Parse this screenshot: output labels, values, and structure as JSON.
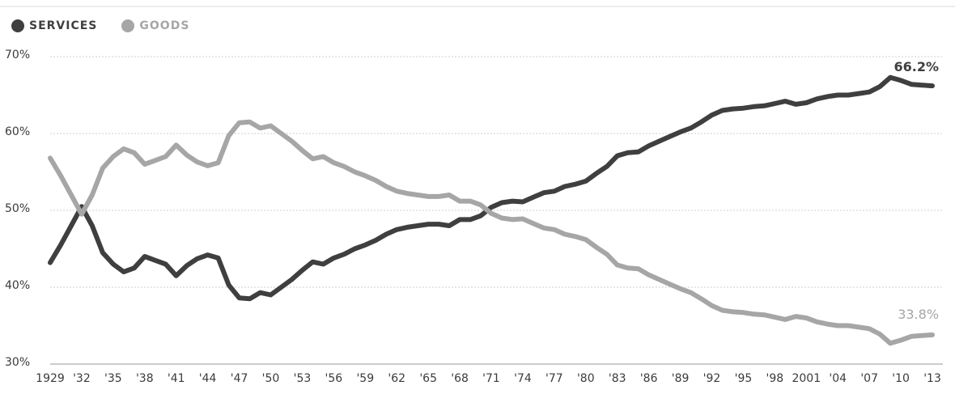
{
  "chart_data": {
    "type": "line",
    "title": "",
    "xlabel": "",
    "ylabel": "",
    "ylim": [
      30,
      70
    ],
    "xlim": [
      1929,
      2014
    ],
    "grid": true,
    "legend_placement": "top-left",
    "y_ticks": [
      {
        "value": 70,
        "label": "70%"
      },
      {
        "value": 60,
        "label": "60%"
      },
      {
        "value": 50,
        "label": "50%"
      },
      {
        "value": 40,
        "label": "40%"
      },
      {
        "value": 30,
        "label": "30%"
      }
    ],
    "x_ticks": [
      {
        "value": 1929,
        "label": "1929"
      },
      {
        "value": 1932,
        "label": "'32"
      },
      {
        "value": 1935,
        "label": "'35"
      },
      {
        "value": 1938,
        "label": "'38"
      },
      {
        "value": 1941,
        "label": "'41"
      },
      {
        "value": 1944,
        "label": "'44"
      },
      {
        "value": 1947,
        "label": "'47"
      },
      {
        "value": 1950,
        "label": "'50"
      },
      {
        "value": 1953,
        "label": "'53"
      },
      {
        "value": 1956,
        "label": "'56"
      },
      {
        "value": 1959,
        "label": "'59"
      },
      {
        "value": 1962,
        "label": "'62"
      },
      {
        "value": 1965,
        "label": "'65"
      },
      {
        "value": 1968,
        "label": "'68"
      },
      {
        "value": 1971,
        "label": "'71"
      },
      {
        "value": 1974,
        "label": "'74"
      },
      {
        "value": 1977,
        "label": "'77"
      },
      {
        "value": 1980,
        "label": "'80"
      },
      {
        "value": 1983,
        "label": "'83"
      },
      {
        "value": 1986,
        "label": "'86"
      },
      {
        "value": 1989,
        "label": "'89"
      },
      {
        "value": 1992,
        "label": "'92"
      },
      {
        "value": 1995,
        "label": "'95"
      },
      {
        "value": 1998,
        "label": "'98"
      },
      {
        "value": 2001,
        "label": "2001"
      },
      {
        "value": 2004,
        "label": "'04"
      },
      {
        "value": 2007,
        "label": "'07"
      },
      {
        "value": 2010,
        "label": "'10"
      },
      {
        "value": 2013,
        "label": "'13"
      }
    ],
    "series": [
      {
        "name": "SERVICES",
        "color": "#3f3f3f",
        "x": [
          1929,
          1930,
          1931,
          1932,
          1933,
          1934,
          1935,
          1936,
          1937,
          1938,
          1939,
          1940,
          1941,
          1942,
          1943,
          1944,
          1945,
          1946,
          1947,
          1948,
          1949,
          1950,
          1951,
          1952,
          1953,
          1954,
          1955,
          1956,
          1957,
          1958,
          1959,
          1960,
          1961,
          1962,
          1963,
          1964,
          1965,
          1966,
          1967,
          1968,
          1969,
          1970,
          1971,
          1972,
          1973,
          1974,
          1975,
          1976,
          1977,
          1978,
          1979,
          1980,
          1981,
          1982,
          1983,
          1984,
          1985,
          1986,
          1987,
          1988,
          1989,
          1990,
          1991,
          1992,
          1993,
          1994,
          1995,
          1996,
          1997,
          1998,
          1999,
          2000,
          2001,
          2002,
          2003,
          2004,
          2005,
          2006,
          2007,
          2008,
          2009,
          2010,
          2011,
          2012,
          2013
        ],
        "values": [
          43.2,
          45.5,
          48.0,
          50.5,
          48.0,
          44.5,
          43.0,
          42.0,
          42.5,
          44.0,
          43.5,
          43.0,
          41.5,
          42.8,
          43.7,
          44.2,
          43.8,
          40.3,
          38.6,
          38.5,
          39.3,
          39.0,
          40.0,
          41.0,
          42.2,
          43.3,
          43.0,
          43.8,
          44.3,
          45.0,
          45.5,
          46.1,
          46.9,
          47.5,
          47.8,
          48.0,
          48.2,
          48.2,
          48.0,
          48.8,
          48.8,
          49.3,
          50.4,
          51.0,
          51.2,
          51.1,
          51.7,
          52.3,
          52.5,
          53.1,
          53.4,
          53.8,
          54.8,
          55.7,
          57.1,
          57.5,
          57.6,
          58.4,
          59.0,
          59.6,
          60.2,
          60.7,
          61.5,
          62.4,
          63.0,
          63.2,
          63.3,
          63.5,
          63.6,
          63.9,
          64.2,
          63.8,
          64.0,
          64.5,
          64.8,
          65.0,
          65.0,
          65.2,
          65.4,
          66.1,
          67.3,
          66.9,
          66.4,
          66.3,
          66.2
        ]
      },
      {
        "name": "GOODS",
        "color": "#a6a6a6",
        "x": [
          1929,
          1930,
          1931,
          1932,
          1933,
          1934,
          1935,
          1936,
          1937,
          1938,
          1939,
          1940,
          1941,
          1942,
          1943,
          1944,
          1945,
          1946,
          1947,
          1948,
          1949,
          1950,
          1951,
          1952,
          1953,
          1954,
          1955,
          1956,
          1957,
          1958,
          1959,
          1960,
          1961,
          1962,
          1963,
          1964,
          1965,
          1966,
          1967,
          1968,
          1969,
          1970,
          1971,
          1972,
          1973,
          1974,
          1975,
          1976,
          1977,
          1978,
          1979,
          1980,
          1981,
          1982,
          1983,
          1984,
          1985,
          1986,
          1987,
          1988,
          1989,
          1990,
          1991,
          1992,
          1993,
          1994,
          1995,
          1996,
          1997,
          1998,
          1999,
          2000,
          2001,
          2002,
          2003,
          2004,
          2005,
          2006,
          2007,
          2008,
          2009,
          2010,
          2011,
          2012,
          2013
        ],
        "values": [
          56.8,
          54.5,
          52.0,
          49.5,
          52.0,
          55.5,
          57.0,
          58.0,
          57.5,
          56.0,
          56.5,
          57.0,
          58.5,
          57.2,
          56.3,
          55.8,
          56.2,
          59.7,
          61.4,
          61.5,
          60.7,
          61.0,
          60.0,
          59.0,
          57.8,
          56.7,
          57.0,
          56.2,
          55.7,
          55.0,
          54.5,
          53.9,
          53.1,
          52.5,
          52.2,
          52.0,
          51.8,
          51.8,
          52.0,
          51.2,
          51.2,
          50.7,
          49.6,
          49.0,
          48.8,
          48.9,
          48.3,
          47.7,
          47.5,
          46.9,
          46.6,
          46.2,
          45.2,
          44.3,
          42.9,
          42.5,
          42.4,
          41.6,
          41.0,
          40.4,
          39.8,
          39.3,
          38.5,
          37.6,
          37.0,
          36.8,
          36.7,
          36.5,
          36.4,
          36.1,
          35.8,
          36.2,
          36.0,
          35.5,
          35.2,
          35.0,
          35.0,
          34.8,
          34.6,
          33.9,
          32.7,
          33.1,
          33.6,
          33.7,
          33.8
        ]
      }
    ],
    "annotations": [
      {
        "text": "66.2%",
        "series": "SERVICES",
        "x": 2013,
        "y": 66.2
      },
      {
        "text": "33.8%",
        "series": "GOODS",
        "x": 2013,
        "y": 33.8
      }
    ]
  },
  "legend": [
    {
      "label": "SERVICES",
      "color": "#3f3f3f"
    },
    {
      "label": "GOODS",
      "color": "#a6a6a6"
    }
  ]
}
